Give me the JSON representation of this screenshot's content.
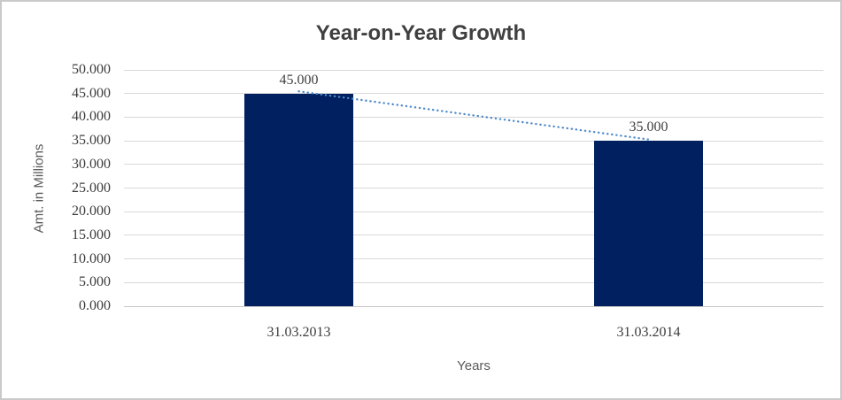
{
  "chart_data": {
    "type": "bar",
    "title": "Year-on-Year Growth",
    "xlabel": "Years",
    "ylabel": "Amt. in Millions",
    "categories": [
      "31.03.2013",
      "31.03.2014"
    ],
    "series": [
      {
        "name": "Amt. in Millions",
        "values": [
          45000,
          35000
        ]
      }
    ],
    "values": [
      45000,
      35000
    ],
    "value_labels": [
      "45.000",
      "35.000"
    ],
    "ylim": [
      0,
      50000
    ],
    "ytick_step": 5000,
    "ytick_labels": [
      "0.000",
      "5.000",
      "10.000",
      "15.000",
      "20.000",
      "25.000",
      "30.000",
      "35.000",
      "40.000",
      "45.000",
      "50.000"
    ],
    "grid": true,
    "legend": false,
    "colors": {
      "bar": "#002060",
      "trendline": "#4f8bc9",
      "gridline": "#d9d9d9",
      "title_text": "#404040",
      "axis_title_text": "#595959",
      "tick_text": "#3c3c3c"
    },
    "trendline": {
      "type": "linear",
      "style": "dotted",
      "from": 45000,
      "to": 35000
    }
  }
}
